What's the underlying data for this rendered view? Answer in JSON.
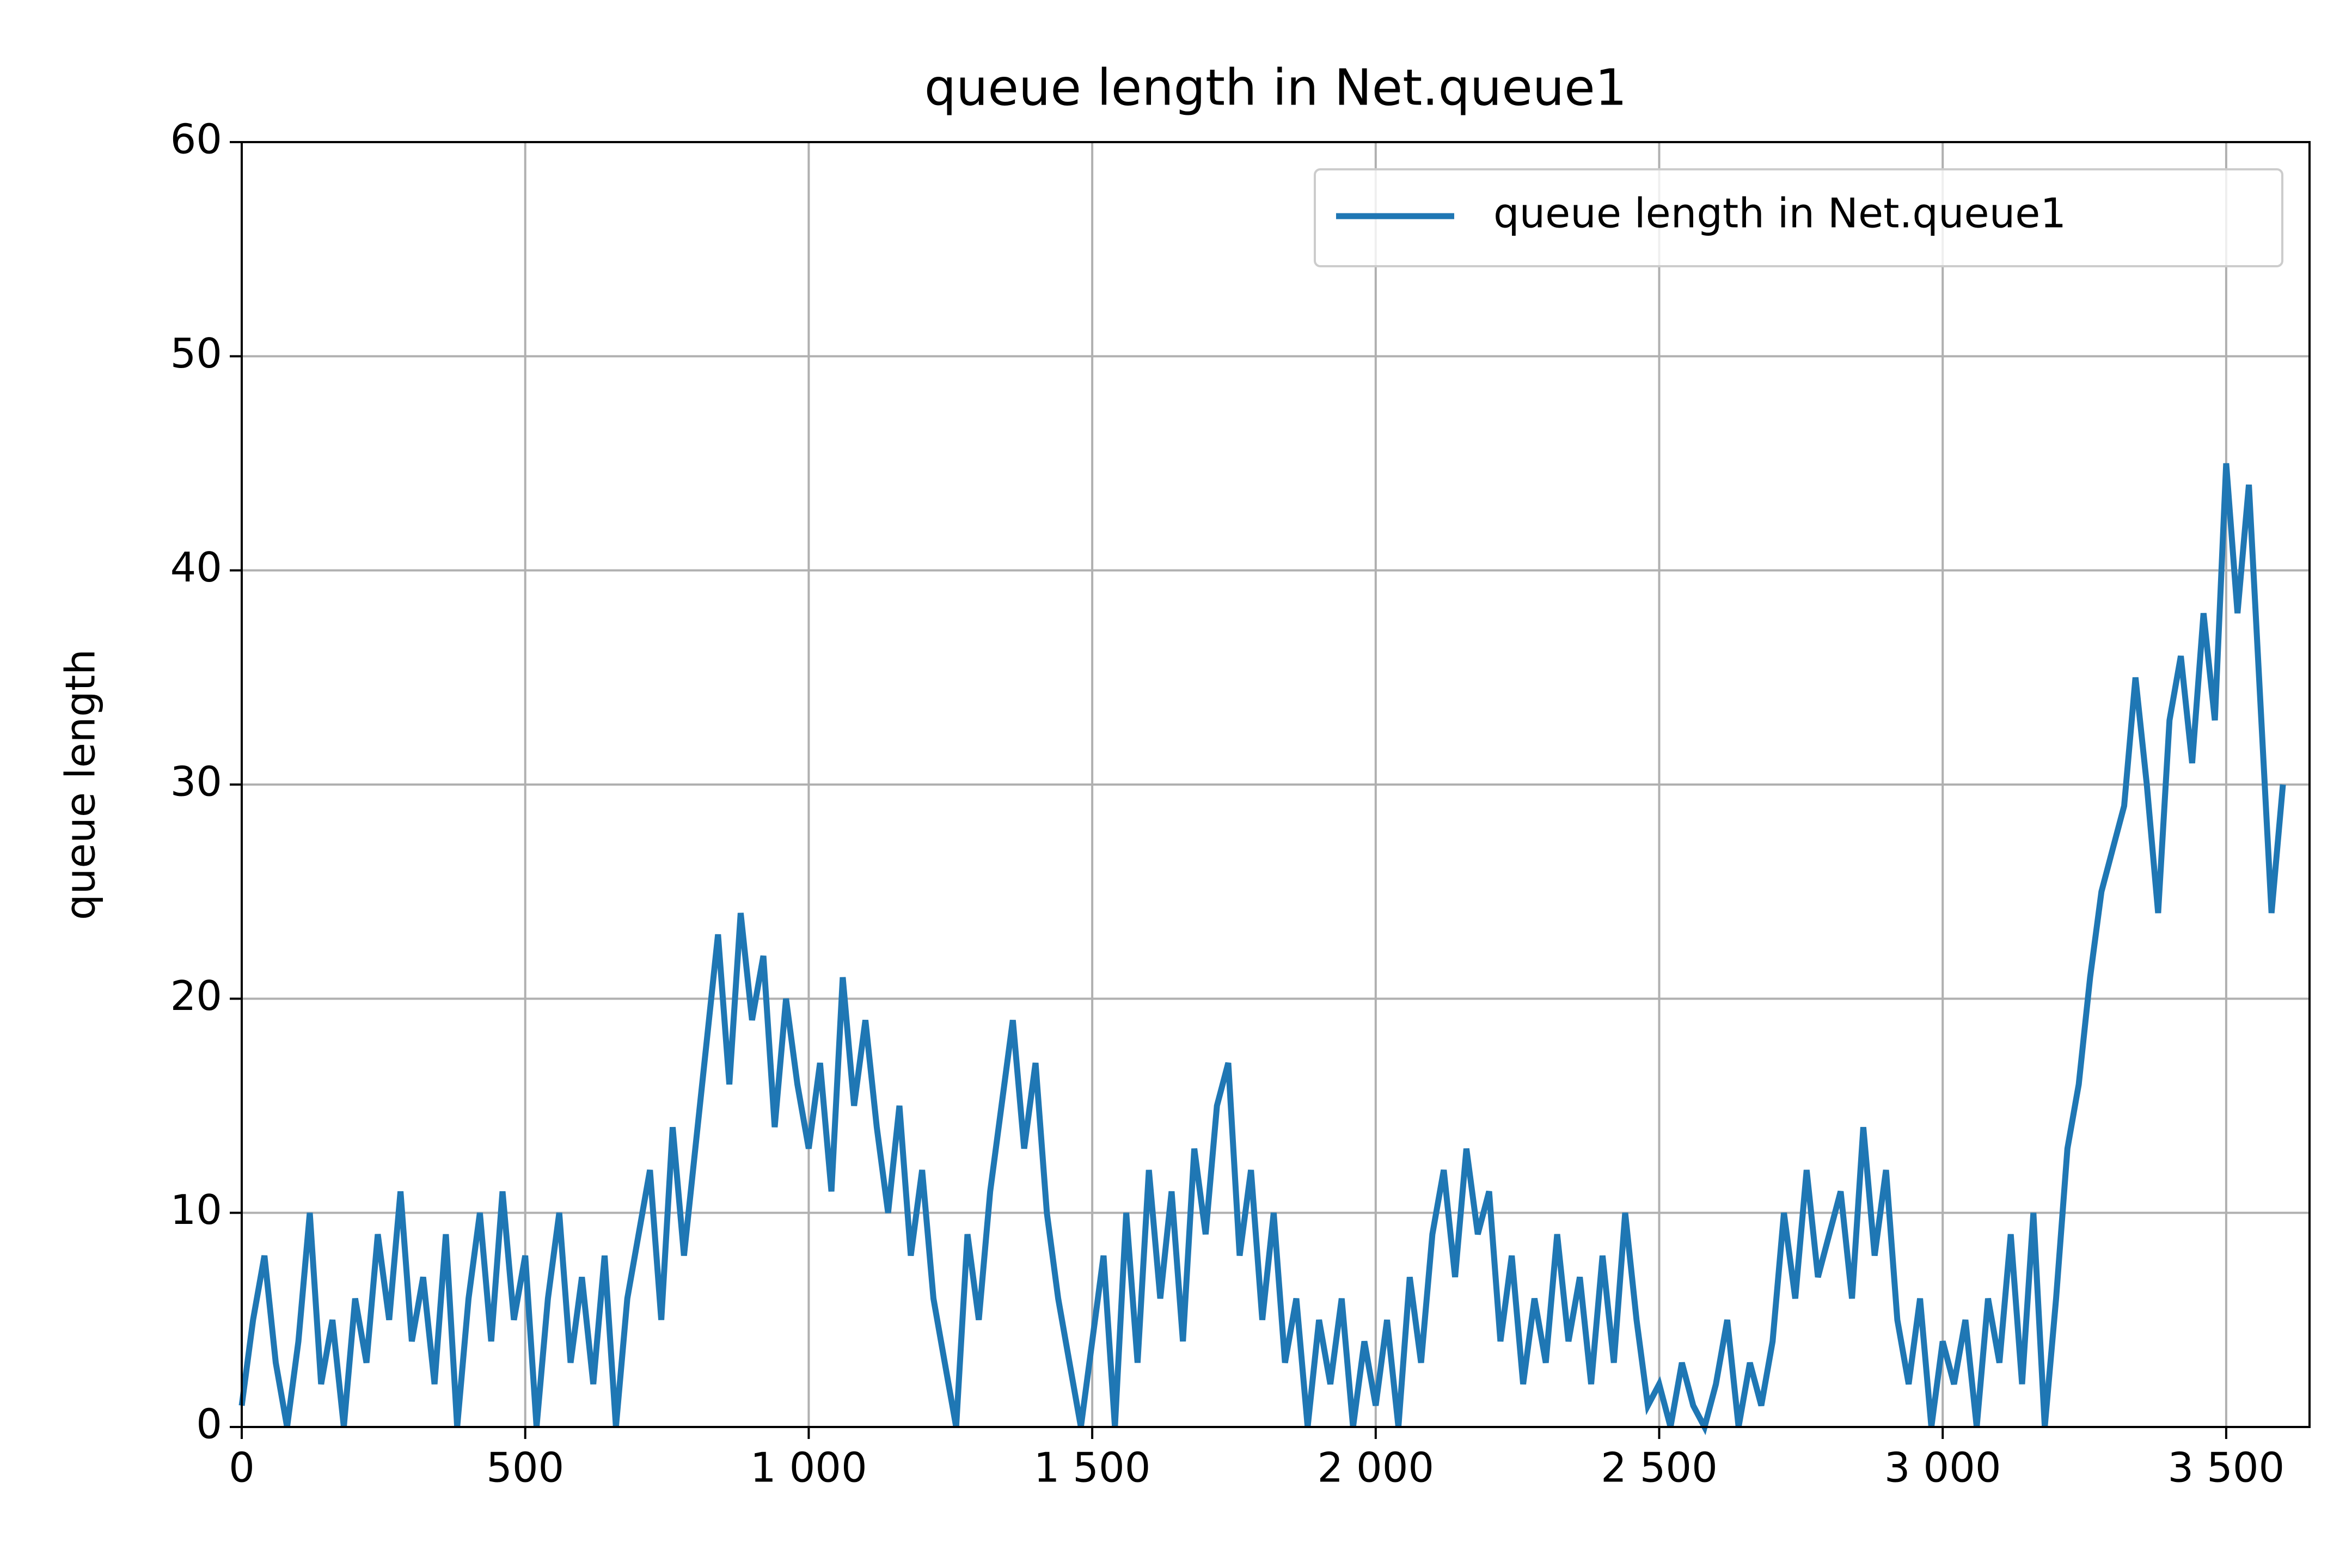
{
  "chart_data": {
    "type": "line",
    "title": "queue length in Net.queue1",
    "y_label": "queue length",
    "x": [
      0,
      20,
      40,
      60,
      80,
      100,
      120,
      140,
      160,
      180,
      200,
      220,
      240,
      260,
      280,
      300,
      320,
      340,
      360,
      380,
      400,
      420,
      440,
      460,
      480,
      500,
      520,
      540,
      560,
      580,
      600,
      620,
      640,
      660,
      680,
      700,
      720,
      740,
      760,
      780,
      800,
      820,
      840,
      860,
      880,
      900,
      920,
      940,
      960,
      980,
      1000,
      1020,
      1040,
      1060,
      1080,
      1100,
      1120,
      1140,
      1160,
      1180,
      1200,
      1220,
      1240,
      1260,
      1280,
      1300,
      1320,
      1340,
      1360,
      1380,
      1400,
      1420,
      1440,
      1460,
      1480,
      1500,
      1520,
      1540,
      1560,
      1580,
      1600,
      1620,
      1640,
      1660,
      1680,
      1700,
      1720,
      1740,
      1760,
      1780,
      1800,
      1820,
      1840,
      1860,
      1880,
      1900,
      1920,
      1940,
      1960,
      1980,
      2000,
      2020,
      2040,
      2060,
      2080,
      2100,
      2120,
      2140,
      2160,
      2180,
      2200,
      2220,
      2240,
      2260,
      2280,
      2300,
      2320,
      2340,
      2360,
      2380,
      2400,
      2420,
      2440,
      2460,
      2480,
      2500,
      2520,
      2540,
      2560,
      2580,
      2600,
      2620,
      2640,
      2660,
      2680,
      2700,
      2720,
      2740,
      2760,
      2780,
      2800,
      2820,
      2840,
      2860,
      2880,
      2900,
      2920,
      2940,
      2960,
      2980,
      3000,
      3020,
      3040,
      3060,
      3080,
      3100,
      3120,
      3140,
      3160,
      3180,
      3200,
      3220,
      3240,
      3260,
      3280,
      3300,
      3320,
      3340,
      3360,
      3380,
      3400,
      3420,
      3440,
      3460,
      3480,
      3500,
      3520,
      3540,
      3560,
      3580,
      3600
    ],
    "series": [
      {
        "name": "queue length in Net.queue1",
        "color": "#1f77b4",
        "values": [
          1,
          5,
          8,
          3,
          0,
          4,
          10,
          2,
          5,
          0,
          6,
          3,
          9,
          5,
          11,
          4,
          7,
          2,
          9,
          0,
          6,
          10,
          4,
          11,
          5,
          8,
          0,
          6,
          10,
          3,
          7,
          2,
          8,
          0,
          6,
          9,
          12,
          5,
          14,
          8,
          13,
          18,
          23,
          16,
          24,
          19,
          22,
          14,
          20,
          16,
          13,
          17,
          11,
          21,
          15,
          19,
          14,
          10,
          15,
          8,
          12,
          6,
          3,
          0,
          9,
          5,
          11,
          15,
          19,
          13,
          17,
          10,
          6,
          3,
          0,
          4,
          8,
          0,
          10,
          3,
          12,
          6,
          11,
          4,
          13,
          9,
          15,
          17,
          8,
          12,
          5,
          10,
          3,
          6,
          0,
          5,
          2,
          6,
          0,
          4,
          1,
          5,
          0,
          7,
          3,
          9,
          12,
          7,
          13,
          9,
          11,
          4,
          8,
          2,
          6,
          3,
          9,
          4,
          7,
          2,
          8,
          3,
          10,
          5,
          1,
          2,
          0,
          3,
          1,
          0,
          2,
          5,
          0,
          3,
          1,
          4,
          10,
          6,
          12,
          7,
          9,
          11,
          6,
          14,
          8,
          12,
          5,
          2,
          6,
          0,
          4,
          2,
          5,
          0,
          6,
          3,
          9,
          2,
          10,
          0,
          6,
          13,
          16,
          21,
          25,
          27,
          29,
          35,
          30,
          24,
          33,
          36,
          31,
          38,
          33,
          45,
          38,
          44,
          34,
          24,
          30
        ]
      }
    ],
    "xlim": [
      0,
      3647
    ],
    "ylim": [
      0,
      60
    ],
    "xticks": [
      0,
      500,
      {
        "value": 1000,
        "label": "1 000"
      },
      {
        "value": 1500,
        "label": "1 500"
      },
      {
        "value": 2000,
        "label": "2 000"
      },
      {
        "value": 2500,
        "label": "2 500"
      },
      {
        "value": 3000,
        "label": "3 000"
      },
      {
        "value": 3500,
        "label": "3 500"
      }
    ],
    "yticks": [
      0,
      10,
      20,
      30,
      40,
      50,
      60
    ],
    "grid": true,
    "legend": "upper right"
  }
}
